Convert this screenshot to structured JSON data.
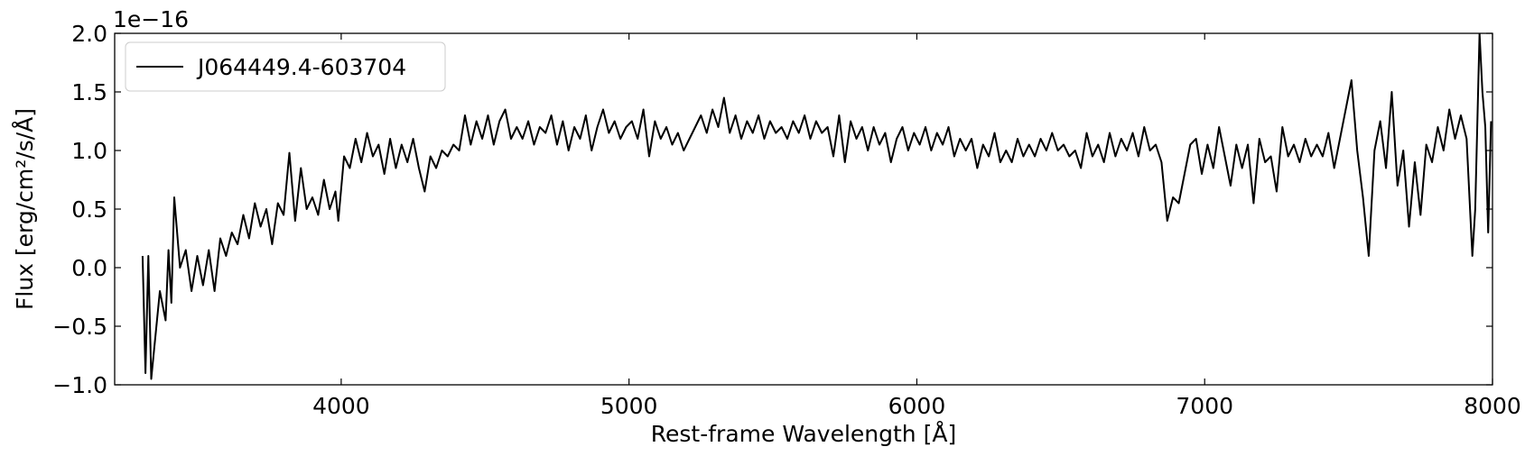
{
  "chart_data": {
    "type": "line",
    "x_label": "Rest-frame Wavelength [Å]",
    "y_label": "Flux [erg/cm²/s/Å]",
    "y_offset_label": "1e−16",
    "xlim": [
      3213,
      8000
    ],
    "xticks": [
      4000,
      5000,
      6000,
      7000,
      8000
    ],
    "ylim": [
      -1,
      2
    ],
    "yticks": [
      {
        "value": -1,
        "label": "−1.0"
      },
      {
        "value": -0.5,
        "label": "−0.5"
      },
      {
        "value": 0,
        "label": "0.0"
      },
      {
        "value": 0.5,
        "label": "0.5"
      },
      {
        "value": 1,
        "label": "1.0"
      },
      {
        "value": 1.5,
        "label": "1.5"
      },
      {
        "value": 2,
        "label": "2.0"
      }
    ],
    "grid": false,
    "legend": "upper left",
    "x": [
      3310,
      3320,
      3330,
      3340,
      3350,
      3370,
      3390,
      3400,
      3410,
      3420,
      3440,
      3460,
      3480,
      3500,
      3520,
      3540,
      3560,
      3580,
      3600,
      3620,
      3640,
      3660,
      3680,
      3700,
      3720,
      3740,
      3760,
      3780,
      3800,
      3820,
      3840,
      3860,
      3880,
      3900,
      3920,
      3940,
      3960,
      3980,
      3990,
      4010,
      4030,
      4050,
      4070,
      4090,
      4110,
      4130,
      4150,
      4170,
      4190,
      4210,
      4230,
      4250,
      4270,
      4290,
      4310,
      4330,
      4350,
      4370,
      4390,
      4410,
      4430,
      4450,
      4470,
      4490,
      4510,
      4530,
      4550,
      4570,
      4590,
      4610,
      4630,
      4650,
      4670,
      4690,
      4710,
      4730,
      4750,
      4770,
      4790,
      4810,
      4830,
      4850,
      4870,
      4890,
      4910,
      4930,
      4950,
      4970,
      4990,
      5010,
      5030,
      5050,
      5070,
      5090,
      5110,
      5130,
      5150,
      5170,
      5190,
      5210,
      5230,
      5250,
      5270,
      5290,
      5310,
      5330,
      5350,
      5370,
      5390,
      5410,
      5430,
      5450,
      5470,
      5490,
      5510,
      5530,
      5550,
      5570,
      5590,
      5610,
      5630,
      5650,
      5670,
      5690,
      5710,
      5730,
      5750,
      5770,
      5790,
      5810,
      5830,
      5850,
      5870,
      5890,
      5910,
      5930,
      5950,
      5970,
      5990,
      6010,
      6030,
      6050,
      6070,
      6090,
      6110,
      6130,
      6150,
      6170,
      6190,
      6210,
      6230,
      6250,
      6270,
      6290,
      6310,
      6330,
      6350,
      6370,
      6390,
      6410,
      6430,
      6450,
      6470,
      6490,
      6510,
      6530,
      6550,
      6570,
      6590,
      6610,
      6630,
      6650,
      6670,
      6690,
      6710,
      6730,
      6750,
      6770,
      6790,
      6810,
      6830,
      6850,
      6870,
      6890,
      6910,
      6930,
      6950,
      6970,
      6990,
      7010,
      7030,
      7050,
      7070,
      7090,
      7110,
      7130,
      7150,
      7170,
      7190,
      7210,
      7230,
      7250,
      7270,
      7290,
      7310,
      7330,
      7350,
      7370,
      7390,
      7410,
      7430,
      7450,
      7470,
      7490,
      7510,
      7530,
      7550,
      7570,
      7590,
      7610,
      7630,
      7650,
      7670,
      7690,
      7710,
      7730,
      7750,
      7770,
      7790,
      7810,
      7830,
      7850,
      7870,
      7890,
      7910,
      7930,
      7940,
      7955,
      7965,
      7975,
      7985,
      7995
    ],
    "series": [
      {
        "name": "J064449.4-603704",
        "color": "#000000",
        "values": [
          0.1,
          -0.9,
          0.1,
          -0.95,
          -0.7,
          -0.2,
          -0.45,
          0.15,
          -0.3,
          0.6,
          0.0,
          0.15,
          -0.2,
          0.1,
          -0.15,
          0.15,
          -0.2,
          0.25,
          0.1,
          0.3,
          0.2,
          0.45,
          0.25,
          0.55,
          0.35,
          0.5,
          0.2,
          0.55,
          0.45,
          0.98,
          0.4,
          0.85,
          0.5,
          0.6,
          0.45,
          0.75,
          0.5,
          0.65,
          0.4,
          0.95,
          0.85,
          1.1,
          0.9,
          1.15,
          0.95,
          1.05,
          0.8,
          1.1,
          0.85,
          1.05,
          0.9,
          1.1,
          0.85,
          0.65,
          0.95,
          0.85,
          1.0,
          0.95,
          1.05,
          1.0,
          1.3,
          1.05,
          1.25,
          1.1,
          1.3,
          1.05,
          1.25,
          1.35,
          1.1,
          1.2,
          1.1,
          1.25,
          1.05,
          1.2,
          1.15,
          1.3,
          1.05,
          1.25,
          1.0,
          1.2,
          1.1,
          1.3,
          1.0,
          1.2,
          1.35,
          1.15,
          1.25,
          1.1,
          1.2,
          1.25,
          1.1,
          1.35,
          0.95,
          1.25,
          1.1,
          1.2,
          1.05,
          1.15,
          1.0,
          1.1,
          1.2,
          1.3,
          1.15,
          1.35,
          1.2,
          1.45,
          1.15,
          1.3,
          1.1,
          1.25,
          1.15,
          1.3,
          1.1,
          1.25,
          1.15,
          1.2,
          1.1,
          1.25,
          1.15,
          1.3,
          1.1,
          1.25,
          1.15,
          1.2,
          0.95,
          1.3,
          0.9,
          1.25,
          1.1,
          1.2,
          1.0,
          1.2,
          1.05,
          1.15,
          0.9,
          1.1,
          1.2,
          1.0,
          1.15,
          1.05,
          1.2,
          1.0,
          1.15,
          1.05,
          1.2,
          0.95,
          1.1,
          1.0,
          1.1,
          0.85,
          1.05,
          0.95,
          1.15,
          0.9,
          1.0,
          0.9,
          1.1,
          0.95,
          1.05,
          0.95,
          1.1,
          1.0,
          1.15,
          1.0,
          1.05,
          0.95,
          1.0,
          0.85,
          1.15,
          0.95,
          1.05,
          0.9,
          1.15,
          0.95,
          1.1,
          1.0,
          1.15,
          0.95,
          1.2,
          1.0,
          1.05,
          0.9,
          0.4,
          0.6,
          0.55,
          0.8,
          1.05,
          1.1,
          0.8,
          1.05,
          0.85,
          1.2,
          0.95,
          0.7,
          1.05,
          0.85,
          1.05,
          0.55,
          1.1,
          0.9,
          0.95,
          0.65,
          1.2,
          0.95,
          1.05,
          0.9,
          1.1,
          0.95,
          1.05,
          0.95,
          1.15,
          0.85,
          1.1,
          1.35,
          1.6,
          1.0,
          0.6,
          0.1,
          1.0,
          1.25,
          0.85,
          1.5,
          0.7,
          1.0,
          0.35,
          0.9,
          0.45,
          1.05,
          0.9,
          1.2,
          1.0,
          1.35,
          1.1,
          1.3,
          1.1,
          0.1,
          0.5,
          2.0,
          1.5,
          1.2,
          0.3,
          1.25
        ]
      }
    ]
  }
}
